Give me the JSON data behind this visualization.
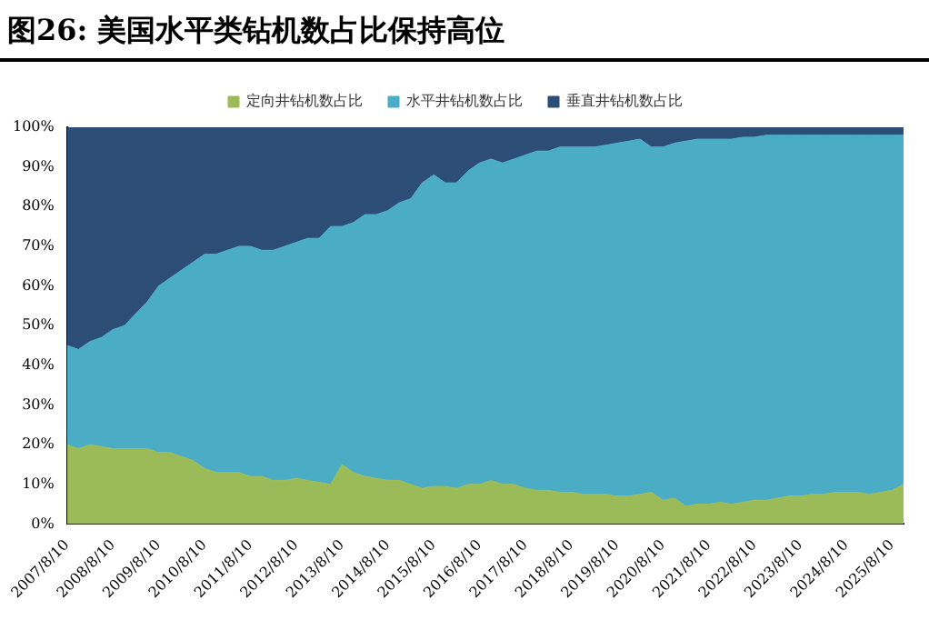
{
  "chart_data": {
    "type": "area",
    "title": "图26:  美国水平类钻机数占比保持高位",
    "stacked": true,
    "legend": "top",
    "grid": false,
    "categories": [
      "2007/8/10",
      null,
      null,
      null,
      "2008/8/10",
      null,
      null,
      null,
      "2009/8/10",
      null,
      null,
      null,
      "2010/8/10",
      null,
      null,
      null,
      "2011/8/10",
      null,
      null,
      null,
      "2012/8/10",
      null,
      null,
      null,
      "2013/8/10",
      null,
      null,
      null,
      "2014/8/10",
      null,
      null,
      null,
      "2015/8/10",
      null,
      null,
      null,
      "2016/8/10",
      null,
      null,
      null,
      "2017/8/10",
      null,
      null,
      null,
      "2018/8/10",
      null,
      null,
      null,
      "2019/8/10",
      null,
      null,
      null,
      "2020/8/10",
      null,
      null,
      null,
      "2021/8/10",
      null,
      null,
      null,
      "2022/8/10",
      null,
      null,
      null,
      "2023/8/10",
      null,
      null,
      null,
      "2024/8/10",
      null,
      null,
      null,
      "2025/8/10",
      null
    ],
    "ylim": [
      0,
      100
    ],
    "yticks": [
      {
        "value": 0,
        "label": "0%"
      },
      {
        "value": 10,
        "label": "10%"
      },
      {
        "value": 20,
        "label": "20%"
      },
      {
        "value": 30,
        "label": "30%"
      },
      {
        "value": 40,
        "label": "40%"
      },
      {
        "value": 50,
        "label": "50%"
      },
      {
        "value": 60,
        "label": "60%"
      },
      {
        "value": 70,
        "label": "70%"
      },
      {
        "value": 80,
        "label": "80%"
      },
      {
        "value": 90,
        "label": "90%"
      },
      {
        "value": 100,
        "label": "100%"
      }
    ],
    "series": [
      {
        "name": "定向井钻机数占比",
        "color": "#9bbb59",
        "values": [
          20,
          19,
          20,
          19.5,
          19,
          19,
          19,
          19,
          18,
          18,
          17,
          16,
          14,
          13,
          13,
          13,
          12,
          12,
          11,
          11,
          11.5,
          11,
          10.5,
          10,
          15,
          13,
          12,
          11.5,
          11,
          11,
          10,
          9,
          9.5,
          9.5,
          9,
          10,
          10,
          11,
          10,
          10,
          9,
          8.5,
          8.5,
          8,
          8,
          7.5,
          7.5,
          7.5,
          7,
          7,
          7.5,
          8,
          6,
          6.5,
          4.5,
          5,
          5,
          5.5,
          5,
          5.5,
          6,
          6,
          6.5,
          7,
          7,
          7.5,
          7.5,
          8,
          8,
          8,
          7.5,
          8,
          8.5,
          10
        ]
      },
      {
        "name": "水平井钻机数占比",
        "color": "#4bacc6",
        "values": [
          25,
          25,
          26,
          27.5,
          30,
          31,
          34,
          37,
          42,
          44,
          47,
          50,
          54,
          55,
          56,
          57,
          58,
          57,
          58,
          59,
          59.5,
          61,
          61.5,
          65,
          60,
          63,
          66,
          66.5,
          68,
          70,
          72,
          77,
          78.5,
          76.5,
          77,
          79,
          81,
          81,
          81,
          82,
          84,
          85.5,
          85.5,
          87,
          87,
          87.5,
          87.5,
          88,
          89,
          89.5,
          89.5,
          87,
          89,
          89.5,
          92,
          92,
          92,
          91.5,
          92,
          92,
          91.5,
          92,
          91.5,
          91,
          91,
          90.5,
          90.5,
          90,
          90,
          90,
          90.5,
          90,
          89.5,
          88
        ]
      },
      {
        "name": "垂直井钻机数占比",
        "color": "#2c4d75",
        "values": [
          55,
          56,
          54,
          53,
          51,
          50,
          47,
          44,
          40,
          38,
          36,
          34,
          32,
          32,
          31,
          30,
          30,
          31,
          31,
          30,
          29,
          28,
          28,
          25,
          25,
          24,
          22,
          22,
          21,
          19,
          18,
          14,
          12,
          14,
          14,
          11,
          9,
          8,
          9,
          8,
          7,
          6,
          6,
          5,
          5,
          5,
          5,
          4.5,
          4,
          3.5,
          3,
          5,
          5,
          4,
          3.5,
          3,
          3,
          3,
          3,
          2.5,
          2.5,
          2,
          2,
          2,
          2,
          2,
          2,
          2,
          2,
          2,
          2,
          2,
          2,
          2
        ]
      }
    ]
  }
}
